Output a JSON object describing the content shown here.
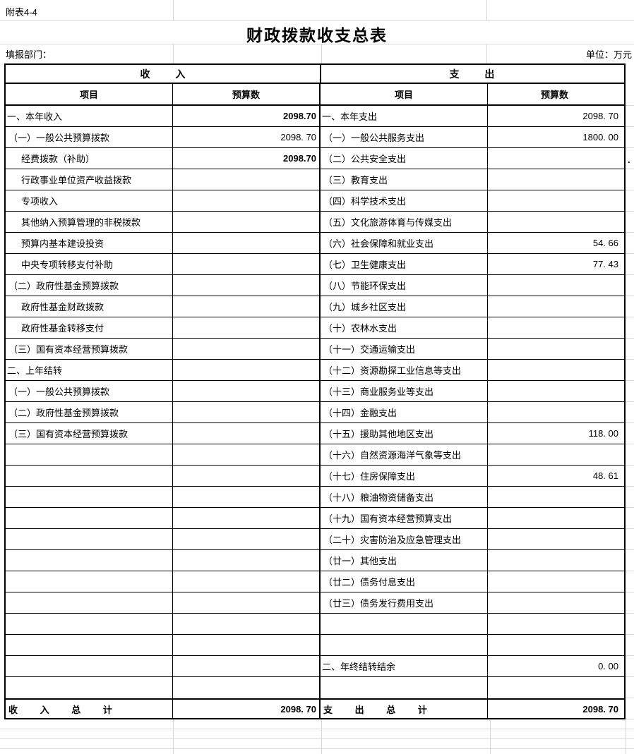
{
  "sheet": {
    "corner_label": "附表4-4",
    "title": "财政拨款收支总表",
    "department_label": "填报部门：",
    "unit_label": "单位：万元",
    "artifact_dot": "."
  },
  "table": {
    "income_header": "收 入",
    "expense_header": "支 出",
    "item_header": "项目",
    "budget_header": "预算数",
    "income_rows": [
      {
        "label": "一、本年收入",
        "value": "2098.70",
        "bold": true,
        "indent": 0
      },
      {
        "label": "（一）一般公共预算拨款",
        "value": "2098. 70",
        "indent": 1
      },
      {
        "label": "经费拨款（补助）",
        "value": "2098.70",
        "bold": true,
        "indent": 2
      },
      {
        "label": "行政事业单位资产收益拨款",
        "value": "",
        "indent": 2
      },
      {
        "label": "专项收入",
        "value": "",
        "indent": 2
      },
      {
        "label": "其他纳入预算管理的非税拨款",
        "value": "",
        "indent": 2
      },
      {
        "label": "预算内基本建设投资",
        "value": "",
        "indent": 2
      },
      {
        "label": "中央专项转移支付补助",
        "value": "",
        "indent": 2
      },
      {
        "label": "（二）政府性基金预算拨款",
        "value": "",
        "indent": 1
      },
      {
        "label": "政府性基金财政拨款",
        "value": "",
        "indent": 2
      },
      {
        "label": "政府性基金转移支付",
        "value": "",
        "indent": 2
      },
      {
        "label": "（三）国有资本经营预算拨款",
        "value": "",
        "indent": 1
      },
      {
        "label": "二、上年结转",
        "value": "",
        "indent": 0
      },
      {
        "label": "（一）一般公共预算拨款",
        "value": "",
        "indent": 1
      },
      {
        "label": "（二）政府性基金预算拨款",
        "value": "",
        "indent": 1
      },
      {
        "label": "（三）国有资本经营预算拨款",
        "value": "",
        "indent": 1
      },
      {
        "label": "",
        "value": ""
      },
      {
        "label": "",
        "value": ""
      },
      {
        "label": "",
        "value": ""
      },
      {
        "label": "",
        "value": ""
      },
      {
        "label": "",
        "value": ""
      },
      {
        "label": "",
        "value": ""
      },
      {
        "label": "",
        "value": ""
      },
      {
        "label": "",
        "value": ""
      },
      {
        "label": "",
        "value": ""
      },
      {
        "label": "",
        "value": ""
      },
      {
        "label": "",
        "value": ""
      },
      {
        "label": "",
        "value": ""
      }
    ],
    "expense_rows": [
      {
        "label": "一、本年支出",
        "value": "2098. 70",
        "indent": 0
      },
      {
        "label": "（一）一般公共服务支出",
        "value": "1800. 00",
        "indent": 1
      },
      {
        "label": "（二）公共安全支出",
        "value": "",
        "indent": 1
      },
      {
        "label": "（三）教育支出",
        "value": "",
        "indent": 1
      },
      {
        "label": "（四）科学技术支出",
        "value": "",
        "indent": 1
      },
      {
        "label": "（五）文化旅游体育与传媒支出",
        "value": "",
        "indent": 1
      },
      {
        "label": "（六）社会保障和就业支出",
        "value": "54. 66",
        "indent": 1
      },
      {
        "label": "（七）卫生健康支出",
        "value": "77. 43",
        "indent": 1
      },
      {
        "label": "（八）节能环保支出",
        "value": "",
        "indent": 1
      },
      {
        "label": "（九）城乡社区支出",
        "value": "",
        "indent": 1
      },
      {
        "label": "（十）农林水支出",
        "value": "",
        "indent": 1
      },
      {
        "label": "（十一）交通运输支出",
        "value": "",
        "indent": 1
      },
      {
        "label": "（十二）资源勘探工业信息等支出",
        "value": "",
        "indent": 1
      },
      {
        "label": "（十三）商业服务业等支出",
        "value": "",
        "indent": 1
      },
      {
        "label": "（十四）金融支出",
        "value": "",
        "indent": 1
      },
      {
        "label": "（十五）援助其他地区支出",
        "value": "118. 00",
        "indent": 1
      },
      {
        "label": "（十六）自然资源海洋气象等支出",
        "value": "",
        "indent": 1
      },
      {
        "label": "（十七）住房保障支出",
        "value": "48. 61",
        "indent": 1
      },
      {
        "label": "（十八）粮油物资储备支出",
        "value": "",
        "indent": 1
      },
      {
        "label": "（十九）国有资本经营预算支出",
        "value": "",
        "indent": 1
      },
      {
        "label": "（二十）灾害防治及应急管理支出",
        "value": "",
        "indent": 1
      },
      {
        "label": "（廿一）其他支出",
        "value": "",
        "indent": 1
      },
      {
        "label": "（廿二）债务付息支出",
        "value": "",
        "indent": 1
      },
      {
        "label": "（廿三）债务发行费用支出",
        "value": "",
        "indent": 1
      },
      {
        "label": "",
        "value": ""
      },
      {
        "label": "",
        "value": ""
      },
      {
        "label": "二、年终结转结余",
        "value": "0. 00",
        "indent": 0
      },
      {
        "label": "",
        "value": ""
      }
    ],
    "income_total": {
      "label": "收 入 总 计",
      "value": "2098. 70"
    },
    "expense_total": {
      "label": "支 出 总 计",
      "value": "2098. 70"
    }
  }
}
